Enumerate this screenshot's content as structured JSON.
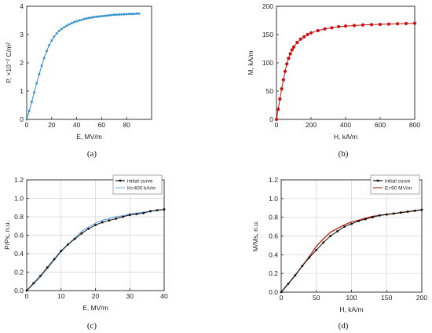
{
  "chart_data": [
    {
      "id": "a",
      "type": "line",
      "panel_label": "(a)",
      "xlabel": "E, MV/m",
      "ylabel": "P, ×10⁻² C/m²",
      "xlim": [
        0,
        100
      ],
      "ylim": [
        0,
        4
      ],
      "xticks": [
        0,
        20,
        40,
        60,
        80
      ],
      "yticks": [
        0,
        1,
        2,
        3,
        4
      ],
      "grid": false,
      "series": [
        {
          "color": "#2f8fc8",
          "marker": "square",
          "x": [
            0,
            2,
            4,
            6,
            8,
            10,
            12,
            14,
            16,
            18,
            20,
            22,
            24,
            26,
            28,
            30,
            32,
            34,
            36,
            38,
            40,
            42,
            44,
            46,
            48,
            50,
            52,
            54,
            56,
            58,
            60,
            62,
            64,
            66,
            68,
            70,
            72,
            74,
            76,
            78,
            80,
            82,
            84,
            86,
            88,
            90
          ],
          "y": [
            0,
            0.3,
            0.62,
            0.95,
            1.28,
            1.6,
            1.9,
            2.17,
            2.42,
            2.62,
            2.79,
            2.93,
            3.04,
            3.13,
            3.2,
            3.26,
            3.31,
            3.36,
            3.4,
            3.44,
            3.47,
            3.5,
            3.52,
            3.55,
            3.57,
            3.59,
            3.6,
            3.62,
            3.63,
            3.64,
            3.65,
            3.66,
            3.67,
            3.68,
            3.69,
            3.7,
            3.7,
            3.71,
            3.71,
            3.72,
            3.72,
            3.73,
            3.73,
            3.73,
            3.74,
            3.74
          ]
        }
      ]
    },
    {
      "id": "b",
      "type": "line",
      "panel_label": "(b)",
      "xlabel": "H, kA/m",
      "ylabel": "M, kA/m",
      "xlim": [
        0,
        800
      ],
      "ylim": [
        0,
        200
      ],
      "xticks": [
        0,
        200,
        400,
        600,
        800
      ],
      "yticks": [
        0,
        50,
        100,
        150,
        200
      ],
      "grid": false,
      "series": [
        {
          "color": "#cc1010",
          "marker": "circle",
          "x": [
            0,
            10,
            20,
            30,
            40,
            50,
            60,
            70,
            80,
            90,
            100,
            120,
            140,
            160,
            180,
            200,
            240,
            280,
            320,
            360,
            400,
            450,
            500,
            550,
            600,
            650,
            700,
            750,
            800
          ],
          "y": [
            0,
            18,
            36,
            54,
            70,
            85,
            98,
            108,
            116,
            123,
            128,
            136,
            142,
            146,
            150,
            153,
            157,
            160,
            162,
            164,
            165,
            166,
            167,
            167.5,
            168,
            168.5,
            169,
            169.5,
            170
          ]
        }
      ]
    },
    {
      "id": "c",
      "type": "line",
      "panel_label": "(c)",
      "xlabel": "E, MV/m",
      "ylabel": "P/Ps, n.u.",
      "xlim": [
        0,
        40
      ],
      "ylim": [
        0,
        1.2
      ],
      "xticks": [
        0,
        10,
        20,
        30,
        40
      ],
      "yticks": [
        0.0,
        0.2,
        0.4,
        0.6,
        0.8,
        1.0,
        1.2
      ],
      "grid": true,
      "legend": "top-right",
      "series": [
        {
          "name": "initial curve",
          "color": "#111111",
          "marker": "square",
          "x": [
            0,
            2,
            4,
            6,
            8,
            10,
            12,
            14,
            16,
            18,
            20,
            22,
            24,
            26,
            28,
            30,
            32,
            34,
            36,
            38,
            40
          ],
          "y": [
            0,
            0.08,
            0.16,
            0.25,
            0.34,
            0.43,
            0.5,
            0.56,
            0.62,
            0.67,
            0.71,
            0.74,
            0.76,
            0.78,
            0.8,
            0.82,
            0.83,
            0.84,
            0.86,
            0.87,
            0.88
          ]
        },
        {
          "name": "H=400 kA/m",
          "color": "#7fb2e0",
          "marker": "none",
          "x": [
            0,
            2,
            4,
            6,
            8,
            10,
            12,
            14,
            16,
            18,
            20,
            22,
            24,
            26,
            28,
            30,
            32,
            34,
            36,
            38,
            40
          ],
          "y": [
            0,
            0.07,
            0.15,
            0.24,
            0.33,
            0.42,
            0.5,
            0.57,
            0.64,
            0.69,
            0.73,
            0.76,
            0.78,
            0.8,
            0.81,
            0.83,
            0.84,
            0.85,
            0.86,
            0.87,
            0.88
          ]
        }
      ]
    },
    {
      "id": "d",
      "type": "line",
      "panel_label": "(d)",
      "xlabel": "H, kA/m",
      "ylabel": "M/Ms, n.u.",
      "xlim": [
        0,
        200
      ],
      "ylim": [
        0,
        1.2
      ],
      "xticks": [
        0,
        50,
        100,
        150,
        200
      ],
      "yticks": [
        0.0,
        0.2,
        0.4,
        0.6,
        0.8,
        1.0,
        1.2
      ],
      "grid": true,
      "legend": "top-right",
      "series": [
        {
          "name": "initial curve",
          "color": "#111111",
          "marker": "square",
          "x": [
            0,
            10,
            20,
            30,
            40,
            50,
            60,
            70,
            80,
            90,
            100,
            110,
            120,
            130,
            140,
            150,
            160,
            170,
            180,
            190,
            200
          ],
          "y": [
            0,
            0.09,
            0.18,
            0.28,
            0.37,
            0.45,
            0.53,
            0.6,
            0.65,
            0.7,
            0.73,
            0.76,
            0.78,
            0.8,
            0.82,
            0.83,
            0.84,
            0.85,
            0.86,
            0.87,
            0.88
          ]
        },
        {
          "name": "E=90 MV/m",
          "color": "#b5321e",
          "marker": "none",
          "x": [
            0,
            10,
            20,
            30,
            40,
            50,
            60,
            70,
            80,
            90,
            100,
            110,
            120,
            130,
            140,
            150,
            160,
            170,
            180,
            190,
            200
          ],
          "y": [
            0,
            0.09,
            0.18,
            0.28,
            0.38,
            0.49,
            0.57,
            0.64,
            0.68,
            0.72,
            0.75,
            0.77,
            0.79,
            0.81,
            0.82,
            0.83,
            0.84,
            0.85,
            0.86,
            0.87,
            0.88
          ]
        }
      ]
    }
  ]
}
